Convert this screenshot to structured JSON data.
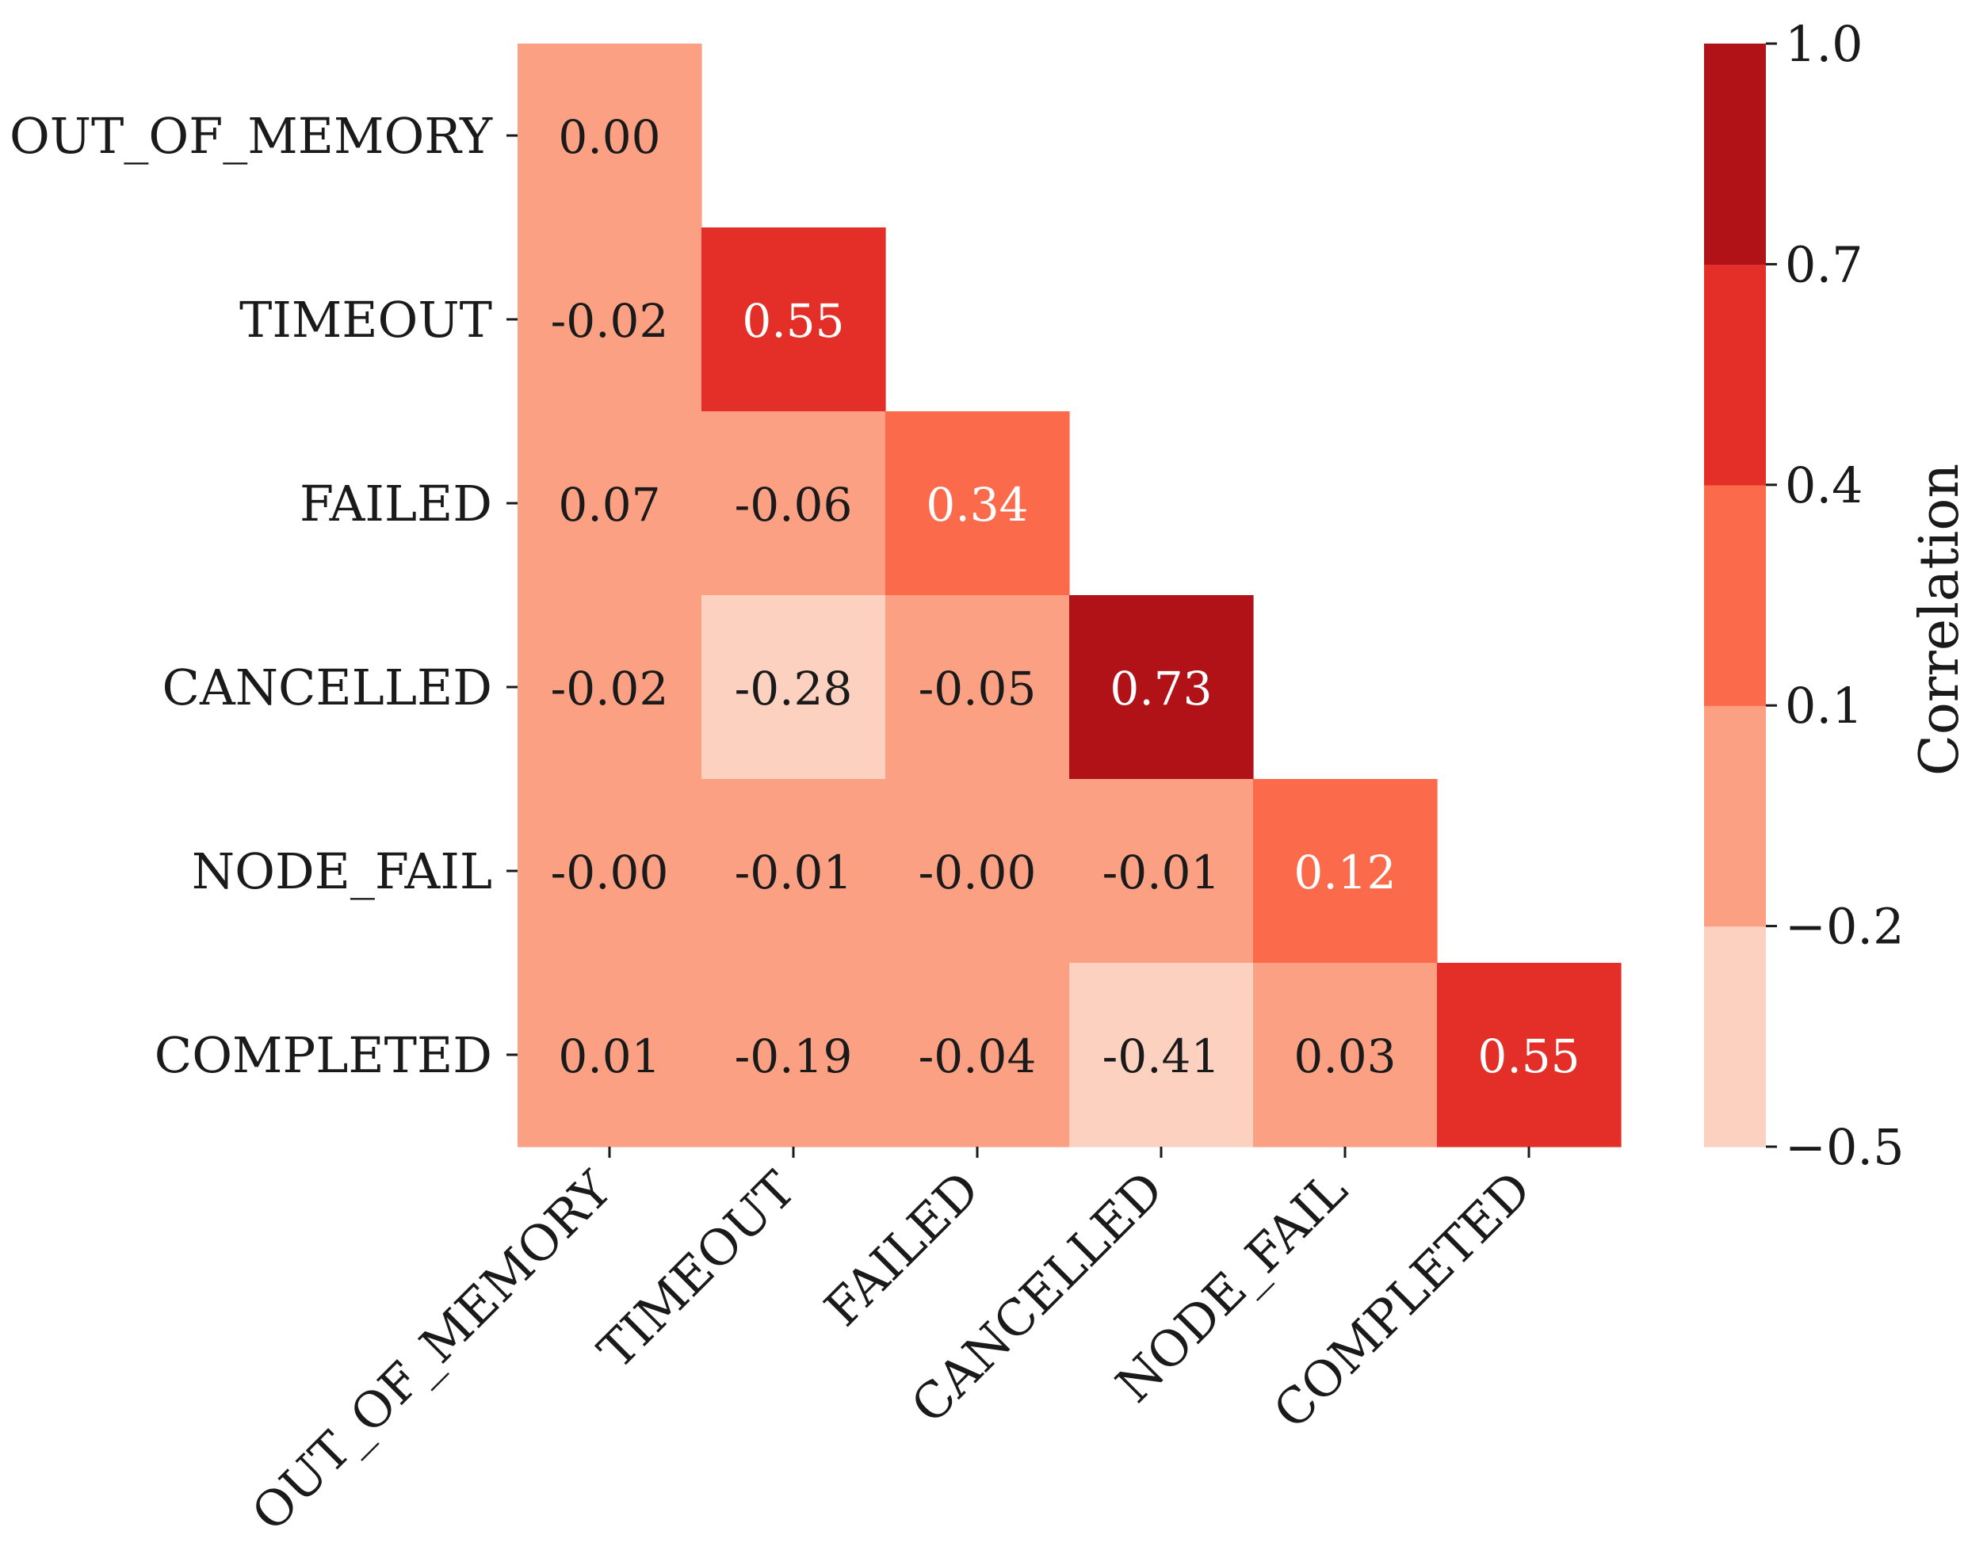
{
  "chart_data": {
    "type": "heatmap",
    "title": "",
    "xlabel": "",
    "ylabel": "",
    "categories": [
      "OUT_OF_MEMORY",
      "TIMEOUT",
      "FAILED",
      "CANCELLED",
      "NODE_FAIL",
      "COMPLETED"
    ],
    "matrix": [
      [
        0.0,
        null,
        null,
        null,
        null,
        null
      ],
      [
        -0.02,
        0.55,
        null,
        null,
        null,
        null
      ],
      [
        0.07,
        -0.06,
        0.34,
        null,
        null,
        null
      ],
      [
        -0.02,
        -0.28,
        -0.05,
        0.73,
        null,
        null
      ],
      [
        -0.0,
        -0.01,
        -0.0,
        -0.01,
        0.12,
        null
      ],
      [
        0.01,
        -0.19,
        -0.04,
        -0.41,
        0.03,
        0.55
      ]
    ],
    "cell_labels": [
      [
        "0.00",
        null,
        null,
        null,
        null,
        null
      ],
      [
        "-0.02",
        "0.55",
        null,
        null,
        null,
        null
      ],
      [
        "0.07",
        "-0.06",
        "0.34",
        null,
        null,
        null
      ],
      [
        "-0.02",
        "-0.28",
        "-0.05",
        "0.73",
        null,
        null
      ],
      [
        "-0.00",
        "-0.01",
        "-0.00",
        "-0.01",
        "0.12",
        null
      ],
      [
        "0.01",
        "-0.19",
        "-0.04",
        "-0.41",
        "0.03",
        "0.55"
      ]
    ],
    "mask": "upper-triangle",
    "colorbar": {
      "label": "Correlation",
      "range": [
        -0.5,
        1.0
      ],
      "bounds": [
        -0.5,
        -0.2,
        0.1,
        0.4,
        0.7,
        1.0
      ],
      "colors": [
        "#fdd1c0",
        "#fba083",
        "#fb6a4a",
        "#e32f27",
        "#b11218"
      ],
      "tick_labels": [
        "−0.5",
        "−0.2",
        "0.1",
        "0.4",
        "0.7",
        "1.0"
      ],
      "placement": "right"
    }
  }
}
